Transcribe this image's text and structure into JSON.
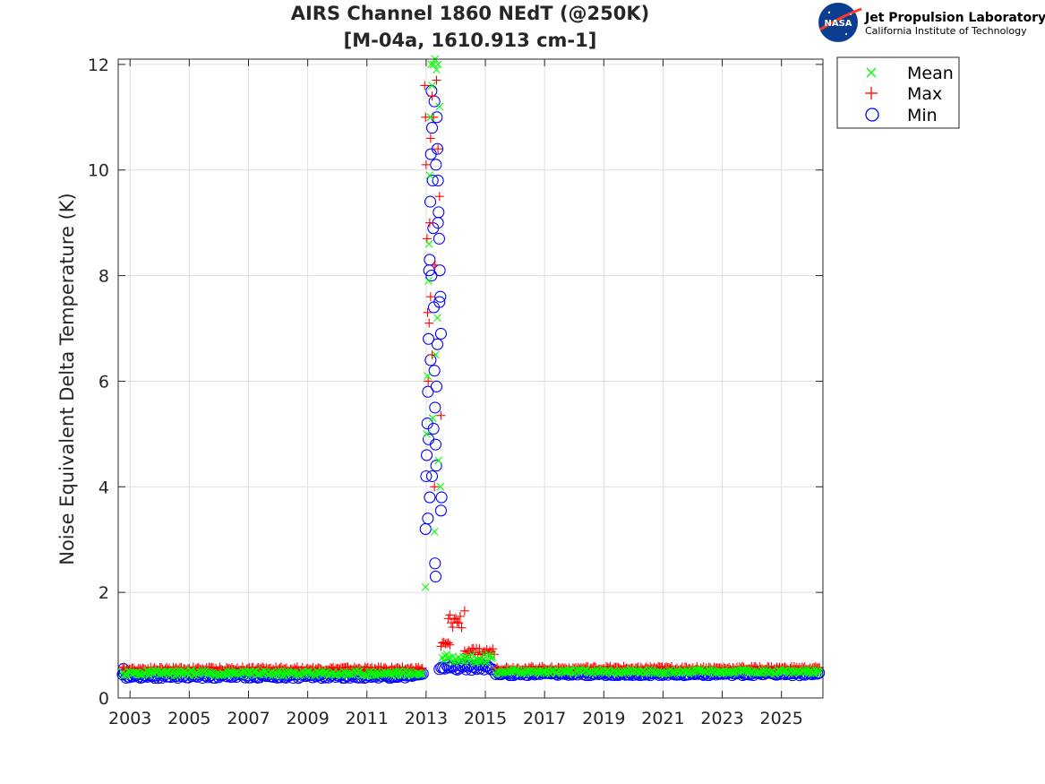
{
  "chart_data": {
    "type": "scatter",
    "title_line1": "AIRS Channel 1860 NEdT (@250K)",
    "title_line2": "[M-04a, 1610.913 cm-1]",
    "xlabel": "",
    "ylabel": "Noise Equivalent Delta Temperature (K)",
    "xlim": [
      2002.6,
      2026.4
    ],
    "ylim": [
      0,
      12.1
    ],
    "x_ticks": [
      2003,
      2005,
      2007,
      2009,
      2011,
      2013,
      2015,
      2017,
      2019,
      2021,
      2023,
      2025
    ],
    "x_tick_labels": [
      "2003",
      "2005",
      "2007",
      "2009",
      "2011",
      "2013",
      "2015",
      "2017",
      "2019",
      "2021",
      "2023",
      "2025"
    ],
    "y_ticks": [
      0,
      2,
      4,
      6,
      8,
      10,
      12
    ],
    "y_tick_labels": [
      "0",
      "2",
      "4",
      "6",
      "8",
      "10",
      "12"
    ],
    "grid": true,
    "legend_position": "outside-top-right",
    "series": [
      {
        "name": "Mean",
        "marker": "x",
        "color": "#00ff00",
        "segments": [
          {
            "x_start": 2002.75,
            "x_end": 2012.9,
            "value": 0.47,
            "jitter": 0.05,
            "step": 0.045
          },
          {
            "x_start": 2013.55,
            "x_end": 2015.25,
            "value": 0.75,
            "jitter": 0.08,
            "step": 0.05
          },
          {
            "x_start": 2015.35,
            "x_end": 2026.3,
            "value": 0.5,
            "jitter": 0.04,
            "step": 0.045
          }
        ],
        "points": [
          [
            2012.98,
            2.1
          ],
          [
            2013.02,
            5.0
          ],
          [
            2013.05,
            6.1
          ],
          [
            2013.08,
            7.9
          ],
          [
            2013.1,
            8.6
          ],
          [
            2013.12,
            9.9
          ],
          [
            2013.15,
            11.0
          ],
          [
            2013.17,
            12.0
          ],
          [
            2013.2,
            11.6
          ],
          [
            2013.25,
            12.0
          ],
          [
            2013.3,
            12.1
          ],
          [
            2013.35,
            11.9
          ],
          [
            2013.4,
            12.0
          ],
          [
            2013.45,
            11.2
          ],
          [
            2013.28,
            3.15
          ],
          [
            2013.42,
            4.5
          ],
          [
            2013.48,
            4.0
          ],
          [
            2013.22,
            5.3
          ],
          [
            2013.32,
            6.5
          ],
          [
            2013.38,
            7.2
          ]
        ]
      },
      {
        "name": "Max",
        "marker": "+",
        "color": "#ff0000",
        "segments": [
          {
            "x_start": 2002.75,
            "x_end": 2012.9,
            "value": 0.55,
            "jitter": 0.04,
            "step": 0.045
          },
          {
            "x_start": 2013.5,
            "x_end": 2013.8,
            "value": 1.0,
            "jitter": 0.08,
            "step": 0.05
          },
          {
            "x_start": 2013.75,
            "x_end": 2014.2,
            "value": 1.45,
            "jitter": 0.15,
            "step": 0.05
          },
          {
            "x_start": 2014.3,
            "x_end": 2015.3,
            "value": 0.88,
            "jitter": 0.06,
            "step": 0.05
          },
          {
            "x_start": 2015.35,
            "x_end": 2026.3,
            "value": 0.56,
            "jitter": 0.04,
            "step": 0.045
          }
        ],
        "points": [
          [
            2012.95,
            11.6
          ],
          [
            2012.98,
            11.0
          ],
          [
            2013.0,
            10.1
          ],
          [
            2013.03,
            8.7
          ],
          [
            2013.05,
            7.3
          ],
          [
            2013.07,
            6.0
          ],
          [
            2013.1,
            7.1
          ],
          [
            2013.12,
            9.0
          ],
          [
            2013.15,
            10.6
          ],
          [
            2013.2,
            11.4
          ],
          [
            2013.25,
            11.0
          ],
          [
            2013.3,
            8.2
          ],
          [
            2013.35,
            11.7
          ],
          [
            2013.4,
            10.4
          ],
          [
            2013.45,
            9.5
          ],
          [
            2013.5,
            5.35
          ],
          [
            2013.2,
            6.5
          ],
          [
            2013.15,
            7.6
          ],
          [
            2014.3,
            1.65
          ],
          [
            2013.28,
            4.0
          ]
        ]
      },
      {
        "name": "Min",
        "marker": "o",
        "color": "#0000ff",
        "segments": [
          {
            "x_start": 2002.75,
            "x_end": 2012.9,
            "value": 0.42,
            "jitter": 0.04,
            "step": 0.06
          },
          {
            "x_start": 2013.45,
            "x_end": 2015.25,
            "value": 0.58,
            "jitter": 0.05,
            "step": 0.06
          },
          {
            "x_start": 2015.35,
            "x_end": 2026.3,
            "value": 0.46,
            "jitter": 0.03,
            "step": 0.06
          }
        ],
        "points": [
          [
            2002.78,
            0.55
          ],
          [
            2012.98,
            3.2
          ],
          [
            2013.0,
            4.2
          ],
          [
            2013.02,
            4.6
          ],
          [
            2013.04,
            5.2
          ],
          [
            2013.06,
            5.8
          ],
          [
            2013.08,
            6.8
          ],
          [
            2013.1,
            8.1
          ],
          [
            2013.12,
            8.3
          ],
          [
            2013.14,
            9.4
          ],
          [
            2013.16,
            10.3
          ],
          [
            2013.18,
            11.5
          ],
          [
            2013.2,
            10.8
          ],
          [
            2013.22,
            9.8
          ],
          [
            2013.24,
            8.9
          ],
          [
            2013.26,
            7.4
          ],
          [
            2013.28,
            6.2
          ],
          [
            2013.3,
            5.5
          ],
          [
            2013.32,
            4.8
          ],
          [
            2013.34,
            4.4
          ],
          [
            2013.36,
            11.0
          ],
          [
            2013.38,
            10.4
          ],
          [
            2013.4,
            9.8
          ],
          [
            2013.42,
            9.2
          ],
          [
            2013.44,
            8.7
          ],
          [
            2013.46,
            8.1
          ],
          [
            2013.48,
            7.6
          ],
          [
            2013.5,
            6.9
          ],
          [
            2013.52,
            3.8
          ],
          [
            2013.5,
            3.55
          ],
          [
            2013.3,
            2.55
          ],
          [
            2013.32,
            2.3
          ],
          [
            2013.06,
            3.4
          ],
          [
            2013.12,
            3.8
          ],
          [
            2013.2,
            4.2
          ],
          [
            2013.25,
            5.1
          ],
          [
            2013.35,
            5.9
          ],
          [
            2013.38,
            6.7
          ],
          [
            2013.45,
            7.5
          ],
          [
            2013.28,
            11.3
          ],
          [
            2013.33,
            10.1
          ],
          [
            2013.4,
            9.0
          ],
          [
            2013.18,
            8.0
          ],
          [
            2013.08,
            4.9
          ],
          [
            2013.15,
            6.4
          ]
        ]
      }
    ]
  },
  "legend": {
    "items": [
      "Mean",
      "Max",
      "Min"
    ]
  },
  "logo": {
    "badge_text": "NASA",
    "title": "Jet Propulsion Laboratory",
    "subtitle": "California Institute of Technology"
  }
}
